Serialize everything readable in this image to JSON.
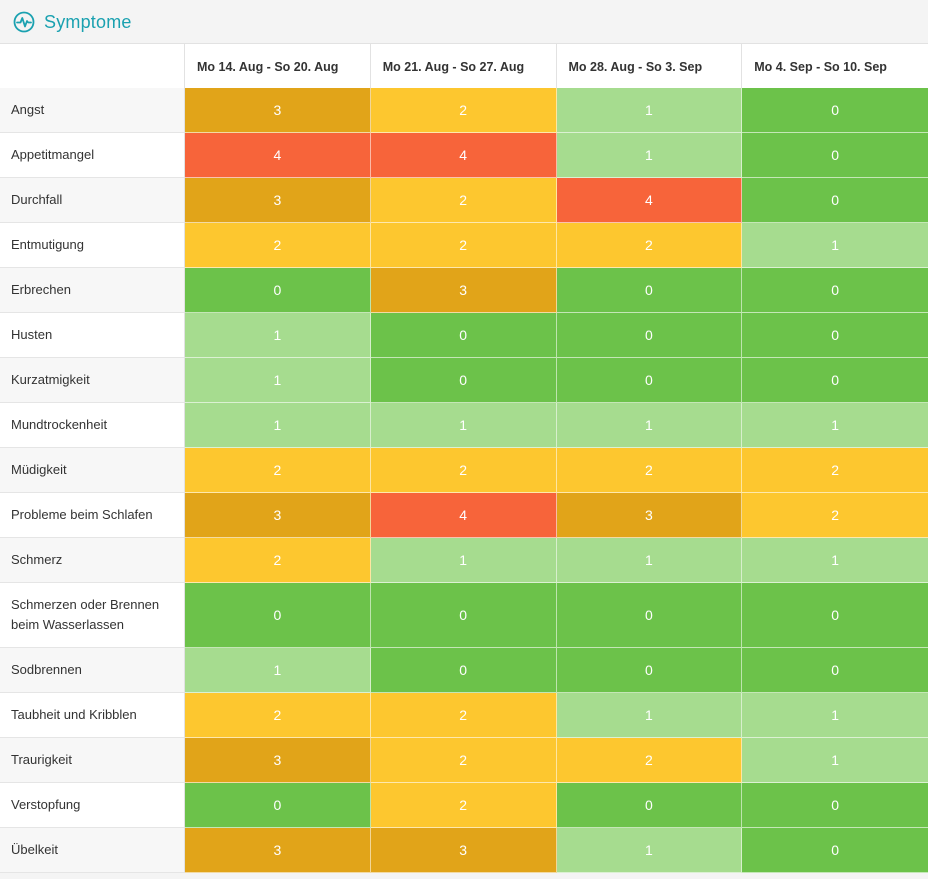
{
  "header": {
    "title": "Symptome",
    "icon": "heartbeat-icon"
  },
  "colors": {
    "0": "#6cc24a",
    "1": "#a6dc8f",
    "2": "#fdc72f",
    "3": "#e1a419",
    "4": "#f7643a"
  },
  "columns": [
    "Mo 14. Aug - So 20. Aug",
    "Mo 21. Aug - So 27. Aug",
    "Mo 28. Aug - So 3. Sep",
    "Mo 4. Sep - So 10. Sep"
  ],
  "rows": [
    {
      "label": "Angst",
      "values": [
        "3",
        "2",
        "1",
        "0"
      ]
    },
    {
      "label": "Appetitmangel",
      "values": [
        "4",
        "4",
        "1",
        "0"
      ]
    },
    {
      "label": "Durchfall",
      "values": [
        "3",
        "2",
        "4",
        "0"
      ]
    },
    {
      "label": "Entmutigung",
      "values": [
        "2",
        "2",
        "2",
        "1"
      ]
    },
    {
      "label": "Erbrechen",
      "values": [
        "0",
        "3",
        "0",
        "0"
      ]
    },
    {
      "label": "Husten",
      "values": [
        "1",
        "0",
        "0",
        "0"
      ]
    },
    {
      "label": "Kurzatmigkeit",
      "values": [
        "1",
        "0",
        "0",
        "0"
      ]
    },
    {
      "label": "Mundtrockenheit",
      "values": [
        "1",
        "1",
        "1",
        "1"
      ]
    },
    {
      "label": "Müdigkeit",
      "values": [
        "2",
        "2",
        "2",
        "2"
      ]
    },
    {
      "label": "Probleme beim Schlafen",
      "values": [
        "3",
        "4",
        "3",
        "2"
      ]
    },
    {
      "label": "Schmerz",
      "values": [
        "2",
        "1",
        "1",
        "1"
      ]
    },
    {
      "label": "Schmerzen oder Brennen beim Wasserlassen",
      "values": [
        "0",
        "0",
        "0",
        "0"
      ]
    },
    {
      "label": "Sodbrennen",
      "values": [
        "1",
        "0",
        "0",
        "0"
      ]
    },
    {
      "label": "Taubheit und Kribblen",
      "values": [
        "2",
        "2",
        "1",
        "1"
      ]
    },
    {
      "label": "Traurigkeit",
      "values": [
        "3",
        "2",
        "2",
        "1"
      ]
    },
    {
      "label": "Verstopfung",
      "values": [
        "0",
        "2",
        "0",
        "0"
      ]
    },
    {
      "label": "Übelkeit",
      "values": [
        "3",
        "3",
        "1",
        "0"
      ]
    }
  ]
}
